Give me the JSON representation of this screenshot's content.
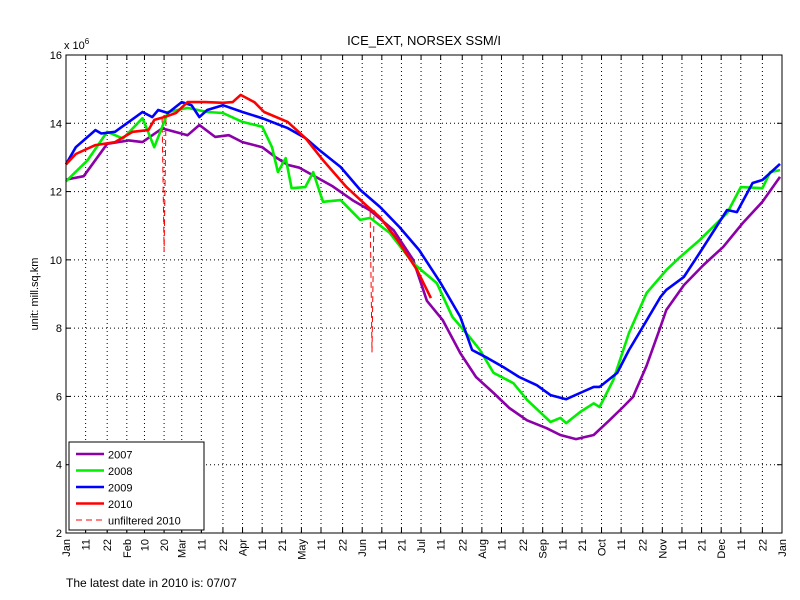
{
  "chart_data": {
    "type": "line",
    "title": "ICE_EXT, NORSEX SSM/I",
    "ylabel": "unit: mill.sq.km",
    "y_multiplier": "x 10",
    "y_multiplier_exp": "6",
    "ylim": [
      2,
      16
    ],
    "yticks": [
      2,
      4,
      6,
      8,
      10,
      12,
      14,
      16
    ],
    "xlim": [
      "01-01",
      "12-31"
    ],
    "xticks": [
      {
        "date": "01-01",
        "label": "Jan"
      },
      {
        "date": "01-11",
        "label": "11"
      },
      {
        "date": "01-22",
        "label": "22"
      },
      {
        "date": "02-01",
        "label": "Feb"
      },
      {
        "date": "02-10",
        "label": "10"
      },
      {
        "date": "02-20",
        "label": "20"
      },
      {
        "date": "03-01",
        "label": "Mar"
      },
      {
        "date": "03-11",
        "label": "11"
      },
      {
        "date": "03-22",
        "label": "22"
      },
      {
        "date": "04-01",
        "label": "Apr"
      },
      {
        "date": "04-11",
        "label": "11"
      },
      {
        "date": "04-21",
        "label": "21"
      },
      {
        "date": "05-01",
        "label": "May"
      },
      {
        "date": "05-11",
        "label": "11"
      },
      {
        "date": "05-22",
        "label": "22"
      },
      {
        "date": "06-01",
        "label": "Jun"
      },
      {
        "date": "06-11",
        "label": "11"
      },
      {
        "date": "06-21",
        "label": "21"
      },
      {
        "date": "07-01",
        "label": "Jul"
      },
      {
        "date": "07-11",
        "label": "11"
      },
      {
        "date": "07-22",
        "label": "22"
      },
      {
        "date": "08-01",
        "label": "Aug"
      },
      {
        "date": "08-11",
        "label": "11"
      },
      {
        "date": "08-22",
        "label": "22"
      },
      {
        "date": "09-01",
        "label": "Sep"
      },
      {
        "date": "09-11",
        "label": "11"
      },
      {
        "date": "09-21",
        "label": "21"
      },
      {
        "date": "10-01",
        "label": "Oct"
      },
      {
        "date": "10-11",
        "label": "11"
      },
      {
        "date": "10-22",
        "label": "22"
      },
      {
        "date": "11-01",
        "label": "Nov"
      },
      {
        "date": "11-11",
        "label": "11"
      },
      {
        "date": "11-21",
        "label": "21"
      },
      {
        "date": "12-01",
        "label": "Dec"
      },
      {
        "date": "12-11",
        "label": "11"
      },
      {
        "date": "12-22",
        "label": "22"
      },
      {
        "date": "01-01+",
        "label": "Jan"
      }
    ],
    "grid": true,
    "legend_position": "bottom-left",
    "series": [
      {
        "name": "2007",
        "color": "#8b00a8",
        "dash": false,
        "points": [
          [
            "01-01",
            12.35
          ],
          [
            "01-10",
            12.45
          ],
          [
            "01-22",
            13.4
          ],
          [
            "02-02",
            13.5
          ],
          [
            "02-09",
            13.45
          ],
          [
            "02-19",
            13.85
          ],
          [
            "03-04",
            13.65
          ],
          [
            "03-10",
            13.95
          ],
          [
            "03-18",
            13.6
          ],
          [
            "03-25",
            13.65
          ],
          [
            "04-01",
            13.45
          ],
          [
            "04-11",
            13.3
          ],
          [
            "04-18",
            13.0
          ],
          [
            "04-24",
            12.78
          ],
          [
            "04-30",
            12.7
          ],
          [
            "05-17",
            12.15
          ],
          [
            "05-27",
            11.75
          ],
          [
            "06-05",
            11.45
          ],
          [
            "06-17",
            10.87
          ],
          [
            "06-27",
            10.0
          ],
          [
            "07-04",
            8.8
          ],
          [
            "07-12",
            8.24
          ],
          [
            "07-21",
            7.27
          ],
          [
            "07-29",
            6.57
          ],
          [
            "08-07",
            6.1
          ],
          [
            "08-15",
            5.66
          ],
          [
            "08-24",
            5.3
          ],
          [
            "09-03",
            5.07
          ],
          [
            "09-10",
            4.87
          ],
          [
            "09-18",
            4.75
          ],
          [
            "09-27",
            4.87
          ],
          [
            "10-05",
            5.3
          ],
          [
            "10-12",
            5.69
          ],
          [
            "10-17",
            5.98
          ],
          [
            "10-24",
            6.9
          ],
          [
            "10-31",
            8.03
          ],
          [
            "11-03",
            8.53
          ],
          [
            "11-12",
            9.26
          ],
          [
            "11-22",
            9.85
          ],
          [
            "12-02",
            10.38
          ],
          [
            "12-12",
            11.08
          ],
          [
            "12-22",
            11.7
          ],
          [
            "12-31",
            12.43
          ]
        ]
      },
      {
        "name": "2008",
        "color": "#00ee00",
        "dash": false,
        "points": [
          [
            "01-01",
            12.3
          ],
          [
            "01-12",
            12.92
          ],
          [
            "01-22",
            13.75
          ],
          [
            "01-30",
            13.55
          ],
          [
            "02-09",
            14.15
          ],
          [
            "02-15",
            13.3
          ],
          [
            "02-22",
            14.33
          ],
          [
            "03-04",
            14.45
          ],
          [
            "03-14",
            14.33
          ],
          [
            "03-22",
            14.3
          ],
          [
            "04-01",
            14.04
          ],
          [
            "04-11",
            13.9
          ],
          [
            "04-16",
            13.3
          ],
          [
            "04-19",
            12.57
          ],
          [
            "04-23",
            12.98
          ],
          [
            "04-26",
            12.1
          ],
          [
            "05-03",
            12.13
          ],
          [
            "05-07",
            12.57
          ],
          [
            "05-12",
            11.7
          ],
          [
            "05-21",
            11.75
          ],
          [
            "05-31",
            11.17
          ],
          [
            "06-05",
            11.23
          ],
          [
            "06-15",
            10.79
          ],
          [
            "06-27",
            9.9
          ],
          [
            "07-09",
            9.32
          ],
          [
            "07-17",
            8.33
          ],
          [
            "07-27",
            7.65
          ],
          [
            "07-31",
            7.36
          ],
          [
            "08-07",
            6.69
          ],
          [
            "08-17",
            6.39
          ],
          [
            "08-24",
            5.9
          ],
          [
            "09-05",
            5.25
          ],
          [
            "09-10",
            5.37
          ],
          [
            "09-13",
            5.22
          ],
          [
            "09-20",
            5.54
          ],
          [
            "09-27",
            5.8
          ],
          [
            "09-30",
            5.69
          ],
          [
            "10-07",
            6.48
          ],
          [
            "10-15",
            7.86
          ],
          [
            "10-24",
            9.03
          ],
          [
            "11-03",
            9.7
          ],
          [
            "11-10",
            10.08
          ],
          [
            "11-20",
            10.58
          ],
          [
            "12-04",
            11.37
          ],
          [
            "12-11",
            12.13
          ],
          [
            "12-22",
            12.1
          ],
          [
            "12-26",
            12.57
          ],
          [
            "12-31",
            12.63
          ]
        ]
      },
      {
        "name": "2009",
        "color": "#0000ff",
        "dash": false,
        "points": [
          [
            "01-01",
            12.8
          ],
          [
            "01-06",
            13.3
          ],
          [
            "01-16",
            13.8
          ],
          [
            "01-19",
            13.7
          ],
          [
            "01-26",
            13.75
          ],
          [
            "02-02",
            14.04
          ],
          [
            "02-09",
            14.33
          ],
          [
            "02-14",
            14.18
          ],
          [
            "02-17",
            14.39
          ],
          [
            "02-22",
            14.3
          ],
          [
            "03-01",
            14.62
          ],
          [
            "03-06",
            14.53
          ],
          [
            "03-10",
            14.18
          ],
          [
            "03-14",
            14.39
          ],
          [
            "03-22",
            14.53
          ],
          [
            "04-01",
            14.33
          ],
          [
            "04-11",
            14.15
          ],
          [
            "04-24",
            13.86
          ],
          [
            "05-03",
            13.57
          ],
          [
            "05-10",
            13.22
          ],
          [
            "05-21",
            12.72
          ],
          [
            "05-31",
            12.05
          ],
          [
            "06-10",
            11.55
          ],
          [
            "06-20",
            10.96
          ],
          [
            "06-30",
            10.29
          ],
          [
            "07-11",
            9.32
          ],
          [
            "07-21",
            8.33
          ],
          [
            "07-27",
            7.36
          ],
          [
            "08-04",
            7.12
          ],
          [
            "08-12",
            6.86
          ],
          [
            "08-20",
            6.57
          ],
          [
            "08-29",
            6.33
          ],
          [
            "09-05",
            6.04
          ],
          [
            "09-13",
            5.92
          ],
          [
            "09-20",
            6.1
          ],
          [
            "09-27",
            6.28
          ],
          [
            "09-30",
            6.28
          ],
          [
            "10-09",
            6.69
          ],
          [
            "10-15",
            7.36
          ],
          [
            "10-22",
            8.03
          ],
          [
            "10-31",
            8.91
          ],
          [
            "11-03",
            9.12
          ],
          [
            "11-12",
            9.5
          ],
          [
            "11-20",
            10.2
          ],
          [
            "12-04",
            11.46
          ],
          [
            "12-09",
            11.4
          ],
          [
            "12-17",
            12.25
          ],
          [
            "12-22",
            12.34
          ],
          [
            "12-31",
            12.81
          ]
        ]
      },
      {
        "name": "2010",
        "color": "#ff0000",
        "dash": false,
        "points": [
          [
            "01-01",
            12.8
          ],
          [
            "01-06",
            13.1
          ],
          [
            "01-16",
            13.36
          ],
          [
            "01-26",
            13.45
          ],
          [
            "02-04",
            13.75
          ],
          [
            "02-12",
            13.8
          ],
          [
            "02-15",
            14.1
          ],
          [
            "02-20",
            14.18
          ],
          [
            "02-26",
            14.3
          ],
          [
            "03-04",
            14.62
          ],
          [
            "03-13",
            14.62
          ],
          [
            "03-22",
            14.6
          ],
          [
            "03-27",
            14.62
          ],
          [
            "03-31",
            14.83
          ],
          [
            "04-07",
            14.62
          ],
          [
            "04-12",
            14.33
          ],
          [
            "04-24",
            14.04
          ],
          [
            "05-03",
            13.57
          ],
          [
            "05-12",
            12.92
          ],
          [
            "05-24",
            12.13
          ],
          [
            "06-03",
            11.6
          ],
          [
            "06-10",
            11.25
          ],
          [
            "06-19",
            10.58
          ],
          [
            "06-29",
            9.7
          ],
          [
            "07-06",
            8.88
          ]
        ]
      },
      {
        "name": "unfiltered 2010",
        "color": "#ff0000",
        "dash": true,
        "points": [
          [
            "01-01",
            12.8
          ],
          [
            "01-06",
            13.1
          ],
          [
            "01-16",
            13.36
          ],
          [
            "01-26",
            13.45
          ],
          [
            "02-04",
            13.75
          ],
          [
            "02-12",
            13.8
          ],
          [
            "02-15",
            14.1
          ],
          [
            "02-19",
            14.15
          ],
          [
            "02-20",
            10.25
          ],
          [
            "02-21",
            14.2
          ],
          [
            "02-26",
            14.3
          ],
          [
            "03-04",
            14.62
          ],
          [
            "03-13",
            14.62
          ],
          [
            "03-22",
            14.6
          ],
          [
            "03-27",
            14.62
          ],
          [
            "03-31",
            14.83
          ],
          [
            "04-07",
            14.62
          ],
          [
            "04-12",
            14.33
          ],
          [
            "04-24",
            14.04
          ],
          [
            "05-03",
            13.57
          ],
          [
            "05-12",
            12.92
          ],
          [
            "05-24",
            12.13
          ],
          [
            "06-03",
            11.6
          ],
          [
            "06-05",
            11.5
          ],
          [
            "06-06",
            7.3
          ],
          [
            "06-07",
            11.45
          ],
          [
            "06-10",
            11.25
          ],
          [
            "06-19",
            10.58
          ],
          [
            "06-29",
            9.7
          ],
          [
            "07-06",
            8.88
          ]
        ]
      }
    ]
  },
  "footer": {
    "text": "The latest date in 2010 is: 07/07"
  }
}
